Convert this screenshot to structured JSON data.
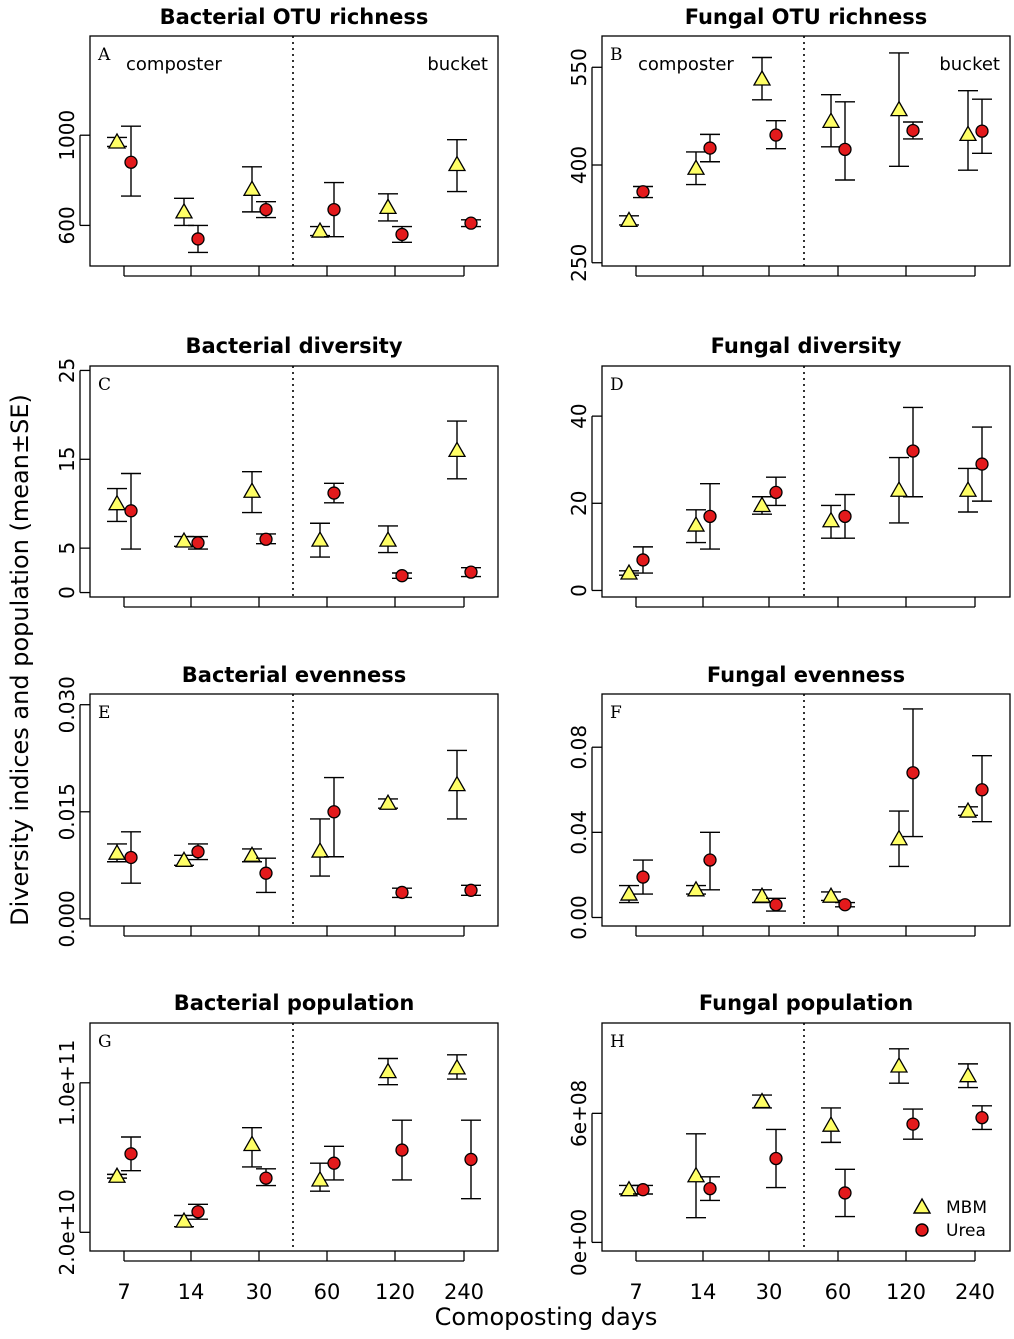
{
  "colors": {
    "mbm": "#ffff66",
    "urea": "#e31a1c",
    "line": "#000000"
  },
  "labels": {
    "ylabel": "Diversity indices and population (mean±SE)",
    "xlabel": "Comoposting days",
    "left_section": "composter",
    "right_section": "bucket"
  },
  "legend": {
    "mbm": "MBM",
    "urea": "Urea"
  },
  "chart_data": [
    {
      "id": "A",
      "type": "scatter",
      "title": "Bacterial OTU richness",
      "days": [
        "7",
        "14",
        "30",
        "60",
        "120",
        "240"
      ],
      "ylim": [
        420,
        1440
      ],
      "yticks": [
        600,
        1000
      ],
      "ytick_labels": [
        "600",
        "1000"
      ],
      "series": [
        {
          "name": "MBM",
          "values": [
            970,
            660,
            760,
            575,
            680,
            870
          ],
          "lo": [
            950,
            600,
            660,
            555,
            620,
            750
          ],
          "hi": [
            990,
            720,
            860,
            595,
            740,
            980
          ]
        },
        {
          "name": "Urea",
          "values": [
            880,
            540,
            670,
            670,
            560,
            610
          ],
          "lo": [
            730,
            480,
            635,
            550,
            525,
            595
          ],
          "hi": [
            1040,
            600,
            705,
            790,
            595,
            625
          ]
        }
      ]
    },
    {
      "id": "B",
      "type": "scatter",
      "title": "Fungal OTU richness",
      "days": [
        "7",
        "14",
        "30",
        "60",
        "120",
        "240"
      ],
      "ylim": [
        245,
        598
      ],
      "yticks": [
        250,
        400,
        550
      ],
      "ytick_labels": [
        "250",
        "400",
        "550"
      ],
      "series": [
        {
          "name": "MBM",
          "values": [
            315,
            395,
            532,
            467,
            485,
            447
          ],
          "lo": [
            308,
            370,
            500,
            428,
            398,
            392
          ],
          "hi": [
            322,
            420,
            565,
            508,
            572,
            514
          ]
        },
        {
          "name": "Urea",
          "values": [
            359,
            426,
            446,
            424,
            453,
            452
          ],
          "lo": [
            350,
            405,
            425,
            377,
            440,
            418
          ],
          "hi": [
            367,
            447,
            468,
            497,
            466,
            501
          ]
        }
      ]
    },
    {
      "id": "C",
      "type": "scatter",
      "title": "Bacterial diversity",
      "days": [
        "7",
        "14",
        "30",
        "60",
        "120",
        "240"
      ],
      "ylim": [
        -0.5,
        25.5
      ],
      "yticks": [
        0,
        5,
        15,
        25
      ],
      "ytick_labels": [
        "0",
        "5",
        "15",
        "25"
      ],
      "series": [
        {
          "name": "MBM",
          "values": [
            10.0,
            5.8,
            11.4,
            5.9,
            5.9,
            16.0
          ],
          "lo": [
            8.0,
            5.2,
            9.0,
            4.0,
            4.5,
            12.8
          ],
          "hi": [
            11.7,
            6.3,
            13.6,
            7.8,
            7.5,
            19.3
          ]
        },
        {
          "name": "Urea",
          "values": [
            9.2,
            5.6,
            6.0,
            11.2,
            1.9,
            2.3
          ],
          "lo": [
            4.9,
            4.9,
            5.5,
            10.1,
            1.6,
            1.8
          ],
          "hi": [
            13.4,
            6.3,
            6.6,
            12.3,
            2.2,
            2.8
          ]
        }
      ]
    },
    {
      "id": "D",
      "type": "scatter",
      "title": "Fungal diversity",
      "days": [
        "7",
        "14",
        "30",
        "60",
        "120",
        "240"
      ],
      "ylim": [
        -1.5,
        51.5
      ],
      "yticks": [
        0,
        20,
        40
      ],
      "ytick_labels": [
        "0",
        "20",
        "40"
      ],
      "series": [
        {
          "name": "MBM",
          "values": [
            4.0,
            15.0,
            19.5,
            16.0,
            23.0,
            23.0
          ],
          "lo": [
            3.5,
            11.0,
            17.5,
            12.0,
            15.5,
            18.0
          ],
          "hi": [
            4.5,
            18.5,
            21.5,
            19.5,
            30.5,
            28.0
          ]
        },
        {
          "name": "Urea",
          "values": [
            7.0,
            17.0,
            22.5,
            17.0,
            32.0,
            29.0
          ],
          "lo": [
            4.0,
            9.5,
            19.5,
            12.0,
            21.5,
            20.5
          ],
          "hi": [
            10.0,
            24.5,
            26.0,
            22.0,
            42.0,
            37.5
          ]
        }
      ]
    },
    {
      "id": "E",
      "type": "scatter",
      "title": "Bacterial evenness",
      "days": [
        "7",
        "14",
        "30",
        "60",
        "120",
        "240"
      ],
      "ylim": [
        -0.001,
        0.0315
      ],
      "yticks": [
        0.0,
        0.015,
        0.03
      ],
      "ytick_labels": [
        "0.000",
        "0.015",
        "0.030"
      ],
      "series": [
        {
          "name": "MBM",
          "values": [
            0.0092,
            0.0082,
            0.0089,
            0.0095,
            0.0162,
            0.0188
          ],
          "lo": [
            0.008,
            0.0075,
            0.008,
            0.006,
            0.0155,
            0.014
          ],
          "hi": [
            0.0105,
            0.0089,
            0.0098,
            0.014,
            0.0168,
            0.0236
          ]
        },
        {
          "name": "Urea",
          "values": [
            0.0086,
            0.0094,
            0.0064,
            0.015,
            0.0037,
            0.004
          ],
          "lo": [
            0.005,
            0.0083,
            0.0037,
            0.0087,
            0.003,
            0.0033
          ],
          "hi": [
            0.0122,
            0.0105,
            0.0085,
            0.0198,
            0.0043,
            0.0047
          ]
        }
      ]
    },
    {
      "id": "F",
      "type": "scatter",
      "title": "Fungal evenness",
      "days": [
        "7",
        "14",
        "30",
        "60",
        "120",
        "240"
      ],
      "ylim": [
        -0.004,
        0.105
      ],
      "yticks": [
        0.0,
        0.04,
        0.08
      ],
      "ytick_labels": [
        "0.00",
        "0.04",
        "0.08"
      ],
      "series": [
        {
          "name": "MBM",
          "values": [
            0.011,
            0.013,
            0.01,
            0.01,
            0.037,
            0.05
          ],
          "lo": [
            0.007,
            0.011,
            0.007,
            0.008,
            0.024,
            0.048
          ],
          "hi": [
            0.015,
            0.015,
            0.013,
            0.012,
            0.05,
            0.052
          ]
        },
        {
          "name": "Urea",
          "values": [
            0.019,
            0.027,
            0.006,
            0.006,
            0.068,
            0.06
          ],
          "lo": [
            0.011,
            0.013,
            0.003,
            0.005,
            0.038,
            0.045
          ],
          "hi": [
            0.027,
            0.04,
            0.009,
            0.007,
            0.098,
            0.076
          ]
        }
      ]
    },
    {
      "id": "G",
      "type": "scatter",
      "title": "Bacterial population",
      "days": [
        "7",
        "14",
        "30",
        "60",
        "120",
        "240"
      ],
      "ylim": [
        10000000000.0,
        132000000000.0
      ],
      "yticks": [
        20000000000.0,
        100000000000.0
      ],
      "ytick_labels": [
        "2.0e+10",
        "1.0e+11"
      ],
      "series": [
        {
          "name": "MBM",
          "values": [
            50000000000.0,
            26000000000.0,
            67000000000.0,
            48000000000.0,
            106000000000.0,
            108000000000.0
          ],
          "lo": [
            49000000000.0,
            23000000000.0,
            55000000000.0,
            42000000000.0,
            99000000000.0,
            102000000000.0
          ],
          "hi": [
            51000000000.0,
            29000000000.0,
            76000000000.0,
            57000000000.0,
            113000000000.0,
            115000000000.0
          ]
        },
        {
          "name": "Urea",
          "values": [
            62000000000.0,
            31000000000.0,
            49000000000.0,
            57000000000.0,
            64000000000.0,
            59000000000.0
          ],
          "lo": [
            53000000000.0,
            27000000000.0,
            45000000000.0,
            48000000000.0,
            48000000000.0,
            38000000000.0
          ],
          "hi": [
            71000000000.0,
            35000000000.0,
            54000000000.0,
            66000000000.0,
            80000000000.0,
            80000000000.0
          ]
        }
      ]
    },
    {
      "id": "H",
      "type": "scatter",
      "title": "Fungal population",
      "days": [
        "7",
        "14",
        "30",
        "60",
        "120",
        "240"
      ],
      "ylim": [
        -40000000.0,
        1020000000.0
      ],
      "yticks": [
        0,
        600000000.0
      ],
      "ytick_labels": [
        "0e+00",
        "6e+08"
      ],
      "series": [
        {
          "name": "MBM",
          "values": [
            245000000.0,
            310000000.0,
            655000000.0,
            545000000.0,
            820000000.0,
            775000000.0
          ],
          "lo": [
            225000000.0,
            115000000.0,
            625000000.0,
            465000000.0,
            740000000.0,
            720000000.0
          ],
          "hi": [
            265000000.0,
            505000000.0,
            685000000.0,
            625000000.0,
            900000000.0,
            830000000.0
          ]
        },
        {
          "name": "Urea",
          "values": [
            245000000.0,
            250000000.0,
            390000000.0,
            230000000.0,
            550000000.0,
            580000000.0
          ],
          "lo": [
            225000000.0,
            195000000.0,
            255000000.0,
            120000000.0,
            480000000.0,
            525000000.0
          ],
          "hi": [
            265000000.0,
            305000000.0,
            525000000.0,
            340000000.0,
            620000000.0,
            635000000.0
          ]
        }
      ]
    }
  ]
}
